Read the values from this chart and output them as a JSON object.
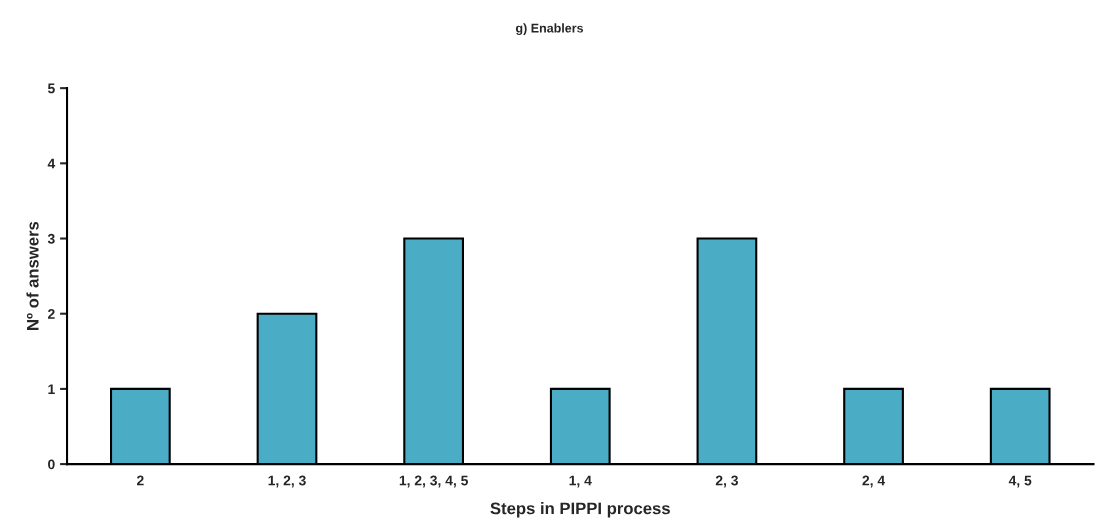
{
  "chart_data": {
    "type": "bar",
    "title": "g) Enablers",
    "xlabel": "Steps in PIPPI process",
    "ylabel": "Nº of answers",
    "categories": [
      "2",
      "1, 2, 3",
      "1, 2, 3, 4, 5",
      "1, 4",
      "2, 3",
      "2, 4",
      "4, 5"
    ],
    "values": [
      1,
      2,
      3,
      1,
      3,
      1,
      1
    ],
    "color": "#4bacc6",
    "ylim": [
      0,
      5
    ],
    "yticks": [
      0,
      1,
      2,
      3,
      4,
      5
    ],
    "grid": false,
    "legend": false
  }
}
